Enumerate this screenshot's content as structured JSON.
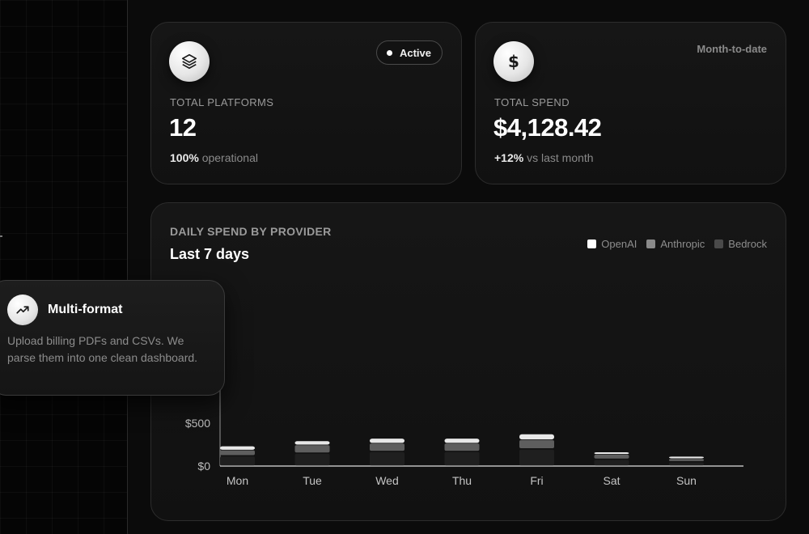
{
  "platforms_card": {
    "icon": "layers-icon",
    "badge_label": "Active",
    "label": "TOTAL PLATFORMS",
    "value": "12",
    "sub_strong": "100%",
    "sub_text": "operational"
  },
  "spend_card": {
    "icon": "dollar-icon",
    "period": "Month-to-date",
    "label": "TOTAL SPEND",
    "value": "$4,128.42",
    "sub_strong": "+12%",
    "sub_text": "vs last month"
  },
  "feature_card": {
    "icon": "trending-up-icon",
    "title": "Multi-format",
    "description": "Upload billing PDFs and CSVs. We parse them into one clean dashboard."
  },
  "chart_card": {
    "eyebrow": "DAILY SPEND BY PROVIDER",
    "title": "Last 7 days"
  },
  "chart_data": {
    "type": "bar",
    "stacked": true,
    "title": "Last 7 days",
    "categories": [
      "Mon",
      "Tue",
      "Wed",
      "Thu",
      "Fri",
      "Sat",
      "Sun"
    ],
    "series": [
      {
        "name": "Bedrock",
        "color": "#1f1f1f",
        "values": [
          120,
          150,
          170,
          170,
          200,
          80,
          50
        ]
      },
      {
        "name": "Anthropic",
        "color": "#5e5e5e",
        "values": [
          70,
          100,
          100,
          100,
          110,
          60,
          40
        ]
      },
      {
        "name": "OpenAI",
        "color": "#e8e8e8",
        "values": [
          40,
          40,
          50,
          50,
          60,
          20,
          20
        ]
      }
    ],
    "y_ticks": [
      {
        "value": 0,
        "label": "$0"
      },
      {
        "value": 500,
        "label": "$500"
      }
    ],
    "ylim": [
      0,
      500
    ],
    "legend": [
      {
        "name": "OpenAI",
        "color": "#ffffff"
      },
      {
        "name": "Anthropic",
        "color": "#8a8a8a"
      },
      {
        "name": "Bedrock",
        "color": "#4a4a4a"
      }
    ],
    "legend_position": "top-right",
    "grid": false
  }
}
